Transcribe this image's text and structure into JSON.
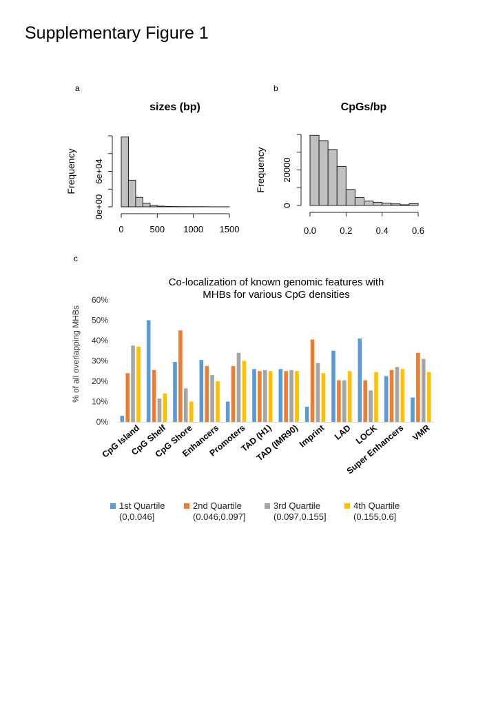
{
  "page_title": "Supplementary Figure 1",
  "panel_labels": {
    "a": "a",
    "b": "b",
    "c": "c"
  },
  "chart_data": [
    {
      "panel": "a",
      "type": "bar",
      "subtype": "histogram",
      "title": "sizes (bp)",
      "xlabel": "",
      "ylabel": "Frequency",
      "bin_edges": [
        0,
        100,
        200,
        300,
        400,
        500,
        600,
        700,
        800,
        900,
        1000,
        1100,
        1200,
        1300,
        1400,
        1500
      ],
      "values": [
        118000,
        45000,
        16000,
        6000,
        2500,
        1200,
        700,
        500,
        400,
        300,
        250,
        200,
        150,
        120,
        100
      ],
      "xlim": [
        0,
        1500
      ],
      "ylim": [
        0,
        120000
      ],
      "xticks": [
        0,
        500,
        1000,
        1500
      ],
      "xtick_labels": [
        "0",
        "500",
        "1000",
        "1500"
      ],
      "yticks": [
        0,
        60000
      ],
      "ytick_labels": [
        "0e+00",
        "6e+04"
      ],
      "bar_color": "#c0c0c0"
    },
    {
      "panel": "b",
      "type": "bar",
      "subtype": "histogram",
      "title": "CpGs/bp",
      "xlabel": "",
      "ylabel": "Frequency",
      "bin_edges": [
        0,
        0.05,
        0.1,
        0.15,
        0.2,
        0.25,
        0.3,
        0.35,
        0.4,
        0.45,
        0.5,
        0.55,
        0.6
      ],
      "values": [
        39500,
        36500,
        31500,
        22000,
        9000,
        4500,
        2500,
        1800,
        1300,
        900,
        400,
        1000
      ],
      "xlim": [
        0,
        0.6
      ],
      "ylim": [
        0,
        40000
      ],
      "xticks": [
        0,
        0.2,
        0.4,
        0.6
      ],
      "xtick_labels": [
        "0.0",
        "0.2",
        "0.4",
        "0.6"
      ],
      "yticks": [
        0,
        20000
      ],
      "ytick_labels": [
        "0",
        "20000"
      ],
      "bar_color": "#c0c0c0"
    },
    {
      "panel": "c",
      "type": "bar",
      "subtype": "grouped",
      "title_lines": [
        "Co-localization of known genomic features with",
        "MHBs for various CpG densities"
      ],
      "xlabel": "",
      "ylabel": "% of all overlapping MHBs",
      "ylim": [
        0,
        60
      ],
      "yticks": [
        0,
        10,
        20,
        30,
        40,
        50,
        60
      ],
      "ytick_labels": [
        "0%",
        "10%",
        "20%",
        "30%",
        "40%",
        "50%",
        "60%"
      ],
      "categories": [
        "CpG Island",
        "CpG Shelf",
        "CpG Shore",
        "Enhancers",
        "Promoters",
        "TAD (H1)",
        "TAD (IMR90)",
        "Imprint",
        "LAD",
        "LOCK",
        "Super Enhancers",
        "VMR"
      ],
      "series": [
        {
          "name": "1st Quartile",
          "range": "(0,0.046]",
          "color": "#5b9bd5",
          "values": [
            3,
            50,
            29.5,
            30.5,
            10,
            26,
            26,
            7.5,
            35,
            41,
            22.5,
            12
          ]
        },
        {
          "name": "2nd Quartile",
          "range": "(0.046,0.097]",
          "color": "#ed7d31",
          "values": [
            24,
            25.5,
            45,
            27.5,
            27.5,
            25,
            25,
            40.5,
            20.5,
            20.5,
            25.5,
            34
          ]
        },
        {
          "name": "3rd Quartile",
          "range": "(0.097,0.155]",
          "color": "#a5a5a5",
          "values": [
            37.5,
            11.5,
            16.5,
            23,
            34,
            25.5,
            25.5,
            29,
            20.5,
            15.5,
            27,
            31
          ]
        },
        {
          "name": "4th Quartile",
          "range": "(0.155,0.6]",
          "color": "#ffc000",
          "values": [
            37,
            14,
            10,
            20,
            30,
            25,
            25,
            24,
            25,
            24.5,
            26,
            24.5
          ]
        }
      ],
      "legend_position": "bottom"
    }
  ]
}
